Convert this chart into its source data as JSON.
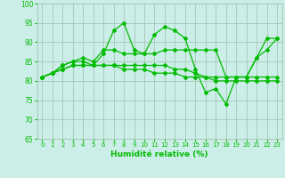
{
  "xlabel": "Humidité relative (%)",
  "background_color": "#cceee8",
  "grid_color": "#aaccbb",
  "line_color": "#00bb00",
  "xlim": [
    -0.5,
    23.5
  ],
  "ylim": [
    65,
    100
  ],
  "xticks": [
    0,
    1,
    2,
    3,
    4,
    5,
    6,
    7,
    8,
    9,
    10,
    11,
    12,
    13,
    14,
    15,
    16,
    17,
    18,
    19,
    20,
    21,
    22,
    23
  ],
  "yticks": [
    65,
    70,
    75,
    80,
    85,
    90,
    95,
    100
  ],
  "series": [
    [
      81,
      82,
      84,
      85,
      85,
      84,
      87,
      93,
      95,
      88,
      87,
      92,
      94,
      93,
      91,
      83,
      77,
      78,
      74,
      81,
      81,
      86,
      91,
      91
    ],
    [
      81,
      82,
      84,
      85,
      86,
      85,
      88,
      88,
      87,
      87,
      87,
      87,
      88,
      88,
      88,
      88,
      88,
      88,
      81,
      81,
      81,
      86,
      88,
      91
    ],
    [
      81,
      82,
      83,
      84,
      84,
      84,
      84,
      84,
      84,
      84,
      84,
      84,
      84,
      83,
      83,
      82,
      81,
      81,
      81,
      81,
      81,
      81,
      81,
      81
    ],
    [
      81,
      82,
      83,
      84,
      84,
      84,
      84,
      84,
      83,
      83,
      83,
      82,
      82,
      82,
      81,
      81,
      81,
      80,
      80,
      80,
      80,
      80,
      80,
      80
    ]
  ]
}
